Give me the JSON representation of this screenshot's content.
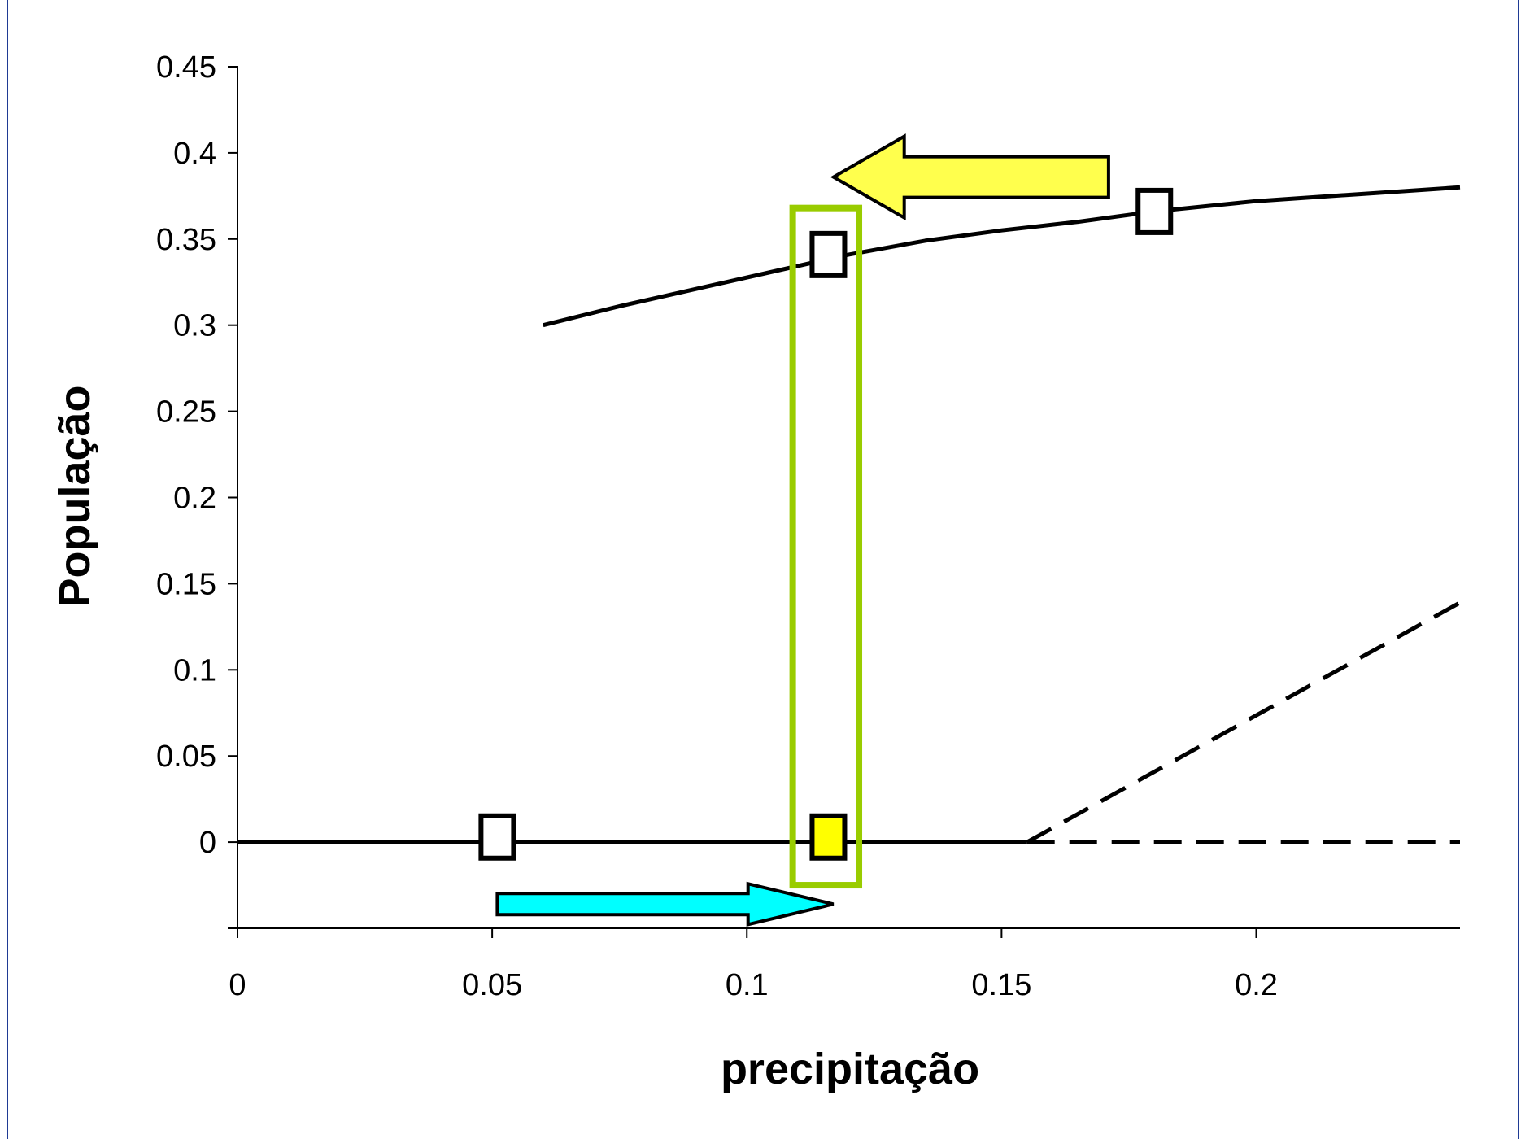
{
  "chart_data": {
    "type": "line",
    "xlabel": "precipitação",
    "ylabel": "População",
    "xlim": [
      0,
      0.24
    ],
    "ylim": [
      -0.05,
      0.45
    ],
    "x_ticks": [
      "0",
      "0.05",
      "0.1",
      "0.15",
      "0.2"
    ],
    "y_ticks": [
      "0.45",
      "0.4",
      "0.35",
      "0.3",
      "0.25",
      "0.2",
      "0.15",
      "0.1",
      "0.05",
      "0"
    ],
    "series": [
      {
        "style": "solid",
        "points": [
          [
            0.06,
            0.3
          ],
          [
            0.075,
            0.311
          ],
          [
            0.09,
            0.321
          ],
          [
            0.105,
            0.331
          ],
          [
            0.12,
            0.341
          ],
          [
            0.135,
            0.349
          ],
          [
            0.15,
            0.355
          ],
          [
            0.165,
            0.36
          ],
          [
            0.18,
            0.366
          ],
          [
            0.2,
            0.372
          ],
          [
            0.22,
            0.376
          ],
          [
            0.24,
            0.38
          ]
        ]
      },
      {
        "style": "solid",
        "points": [
          [
            0,
            0
          ],
          [
            0.155,
            0
          ]
        ]
      },
      {
        "style": "dashed",
        "points": [
          [
            0.155,
            0
          ],
          [
            0.24,
            0.139
          ]
        ]
      },
      {
        "style": "dashed",
        "points": [
          [
            0.155,
            0
          ],
          [
            0.24,
            0
          ]
        ]
      }
    ],
    "markers": [
      {
        "x": 0.051,
        "y": 0.003,
        "fill": "#ffffff"
      },
      {
        "x": 0.116,
        "y": 0.003,
        "fill": "#ffff00"
      },
      {
        "x": 0.116,
        "y": 0.341,
        "fill": "#ffffff"
      },
      {
        "x": 0.18,
        "y": 0.366,
        "fill": "#ffffff"
      }
    ],
    "annotations": {
      "highlight_box": {
        "x_range": [
          0.109,
          0.122
        ],
        "y_range": [
          -0.025,
          0.368
        ],
        "color": "#99cc00"
      },
      "arrow_left": {
        "from": [
          0.171,
          0.386
        ],
        "to": [
          0.117,
          0.386
        ],
        "color": "#ffff4d"
      },
      "arrow_right": {
        "from": [
          0.051,
          -0.036
        ],
        "to": [
          0.117,
          -0.036
        ],
        "color": "#00ffff"
      }
    },
    "grid": false,
    "legend": "none"
  },
  "colors": {
    "page_rule": "#1f3a93",
    "highlight": "#99cc00",
    "arrow_yellow": "#ffff4d",
    "arrow_cyan": "#00ffff",
    "marker_yellow": "#ffff00"
  }
}
